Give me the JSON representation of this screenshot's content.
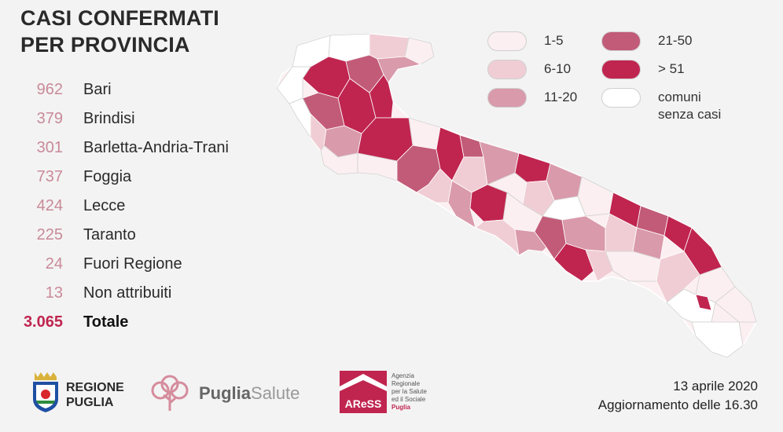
{
  "title": {
    "line1": "CASI CONFERMATI",
    "line2": "PER PROVINCIA"
  },
  "stats": [
    {
      "value": "962",
      "label": "Bari"
    },
    {
      "value": "379",
      "label": "Brindisi"
    },
    {
      "value": "301",
      "label": "Barletta-Andria-Trani"
    },
    {
      "value": "737",
      "label": "Foggia"
    },
    {
      "value": "424",
      "label": "Lecce"
    },
    {
      "value": "225",
      "label": "Taranto"
    },
    {
      "value": "24",
      "label": "Fuori Regione"
    },
    {
      "value": "13",
      "label": "Non attribuiti"
    }
  ],
  "total": {
    "value": "3.065",
    "label": "Totale"
  },
  "legend": [
    {
      "label": "1-5",
      "color": "#fbeff1"
    },
    {
      "label": "6-10",
      "color": "#f0cdd4"
    },
    {
      "label": "11-20",
      "color": "#d99aab"
    },
    {
      "label": "21-50",
      "color": "#c25b78"
    },
    {
      "label": "> 51",
      "color": "#c0254f"
    },
    {
      "label_line1": "comuni",
      "label_line2": "senza casi",
      "color": "#ffffff"
    }
  ],
  "footer": {
    "region_line1": "REGIONE",
    "region_line2": "PUGLIA",
    "puglia_salute_bold": "Puglia",
    "puglia_salute_light": "Salute",
    "aress_logo": "AReSS",
    "aress_lines": [
      "Agenzia",
      "Regionale",
      "per la Salute",
      "ed il Sociale"
    ],
    "aress_puglia": "Puglia",
    "date": "13 aprile 2020",
    "update": "Aggiornamento delle 16.30"
  }
}
